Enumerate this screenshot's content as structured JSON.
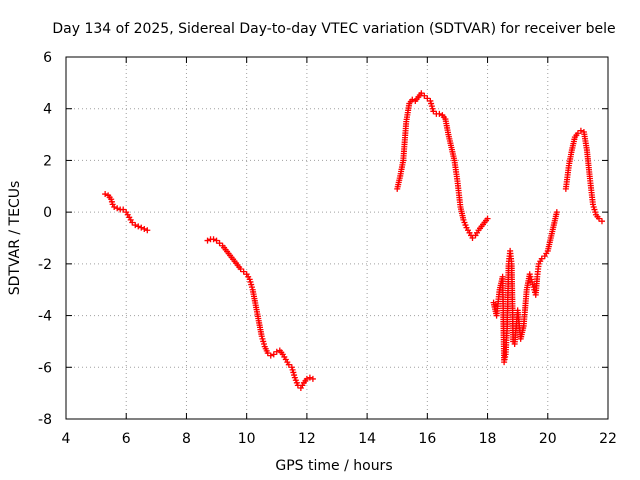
{
  "chart_data": {
    "type": "scatter",
    "title": "Day 134 of 2025, Sidereal Day-to-day VTEC variation (SDTVAR) for receiver bele",
    "xlabel": "GPS time / hours",
    "ylabel": "SDTVAR / TECUs",
    "xlim": [
      4,
      22
    ],
    "ylim": [
      -8,
      6
    ],
    "xticks": [
      4,
      6,
      8,
      10,
      12,
      14,
      16,
      18,
      20,
      22
    ],
    "yticks": [
      -8,
      -6,
      -4,
      -2,
      0,
      2,
      4,
      6
    ],
    "grid": true,
    "marker": "+",
    "color": "#ff0000",
    "series": [
      {
        "name": "SDTVAR",
        "segments": [
          {
            "x": [
              5.3,
              5.4,
              5.5,
              5.55,
              5.6,
              5.7,
              5.8,
              5.9,
              6.0,
              6.1,
              6.2,
              6.3,
              6.4,
              6.5,
              6.6,
              6.7
            ],
            "y": [
              0.7,
              0.65,
              0.5,
              0.3,
              0.2,
              0.15,
              0.1,
              0.1,
              0.0,
              -0.2,
              -0.4,
              -0.5,
              -0.55,
              -0.6,
              -0.65,
              -0.7
            ]
          },
          {
            "x": [
              8.7,
              8.8,
              8.9,
              9.0,
              9.1,
              9.2,
              9.3,
              9.4,
              9.5,
              9.6,
              9.7,
              9.8,
              9.9,
              10.0,
              10.1,
              10.2,
              10.3,
              10.4,
              10.5,
              10.6,
              10.7,
              10.8,
              10.9,
              11.0,
              11.1,
              11.2,
              11.3,
              11.4,
              11.5,
              11.6,
              11.7,
              11.8,
              11.9,
              12.0,
              12.1,
              12.2
            ],
            "y": [
              -1.1,
              -1.05,
              -1.05,
              -1.1,
              -1.2,
              -1.3,
              -1.45,
              -1.6,
              -1.75,
              -1.9,
              -2.05,
              -2.2,
              -2.3,
              -2.4,
              -2.6,
              -3.0,
              -3.6,
              -4.2,
              -4.8,
              -5.2,
              -5.45,
              -5.55,
              -5.5,
              -5.4,
              -5.35,
              -5.5,
              -5.7,
              -5.9,
              -6.0,
              -6.4,
              -6.7,
              -6.8,
              -6.6,
              -6.45,
              -6.4,
              -6.45
            ]
          },
          {
            "x": [
              15.0,
              15.1,
              15.2,
              15.3,
              15.4,
              15.5,
              15.6,
              15.7,
              15.8,
              15.9,
              16.0,
              16.1,
              16.2,
              16.3,
              16.4,
              16.5,
              16.6,
              16.7,
              16.8,
              16.9,
              17.0,
              17.1,
              17.2,
              17.3,
              17.4,
              17.5,
              17.6,
              17.7,
              18.0
            ],
            "y": [
              0.9,
              1.4,
              2.0,
              3.5,
              4.2,
              4.35,
              4.3,
              4.45,
              4.6,
              4.5,
              4.4,
              4.3,
              3.9,
              3.8,
              3.8,
              3.75,
              3.6,
              3.0,
              2.5,
              2.0,
              1.2,
              0.2,
              -0.3,
              -0.6,
              -0.8,
              -1.0,
              -0.9,
              -0.7,
              -0.25
            ]
          },
          {
            "x": [
              18.2,
              18.3,
              18.4,
              18.5,
              18.55,
              18.6,
              18.65,
              18.7,
              18.75,
              18.8,
              18.85,
              18.9,
              19.0,
              19.1,
              19.2,
              19.3,
              19.4,
              19.5,
              19.55,
              19.6,
              19.65,
              19.7,
              19.8,
              19.9,
              20.0,
              20.1,
              20.2,
              20.3
            ],
            "y": [
              -3.5,
              -4.0,
              -3.0,
              -2.5,
              -5.8,
              -5.5,
              -4.5,
              -2.0,
              -1.5,
              -2.0,
              -5.0,
              -5.1,
              -3.8,
              -4.9,
              -4.4,
              -3.0,
              -2.4,
              -2.8,
              -3.0,
              -3.2,
              -2.5,
              -2.0,
              -1.8,
              -1.7,
              -1.5,
              -1.0,
              -0.5,
              0.0
            ]
          },
          {
            "x": [
              20.6,
              20.7,
              20.8,
              20.9,
              21.0,
              21.1,
              21.2,
              21.3,
              21.4,
              21.5,
              21.6,
              21.7,
              21.8
            ],
            "y": [
              0.9,
              1.8,
              2.4,
              2.9,
              3.05,
              3.15,
              3.1,
              2.4,
              1.3,
              0.3,
              -0.1,
              -0.25,
              -0.35
            ]
          }
        ]
      }
    ]
  }
}
